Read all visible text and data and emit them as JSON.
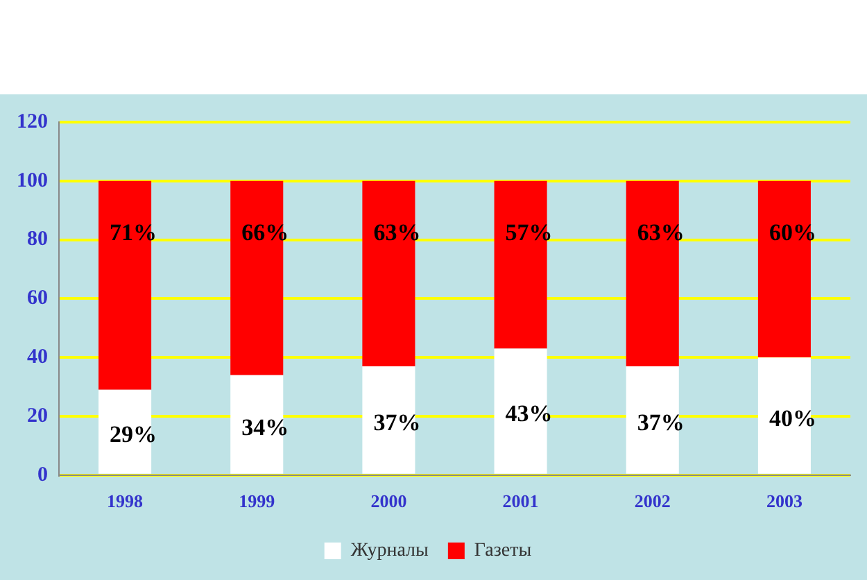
{
  "chart_data": {
    "type": "bar",
    "stacked": true,
    "categories": [
      "1998",
      "1999",
      "2000",
      "2001",
      "2002",
      "2003"
    ],
    "series": [
      {
        "name": "Журналы",
        "color": "#ffffff",
        "values": [
          29,
          34,
          37,
          43,
          37,
          40
        ],
        "value_labels": [
          "29%",
          "34%",
          "37%",
          "43%",
          "37%",
          "40%"
        ]
      },
      {
        "name": "Газеты",
        "color": "#ff0000",
        "values": [
          71,
          66,
          63,
          57,
          63,
          60
        ],
        "value_labels": [
          "71%",
          "66%",
          "63%",
          "57%",
          "63%",
          "60%"
        ]
      }
    ],
    "ylim": [
      0,
      120
    ],
    "yticks": [
      0,
      20,
      40,
      60,
      80,
      100,
      120
    ],
    "grid": "y",
    "legend": "bottom"
  }
}
